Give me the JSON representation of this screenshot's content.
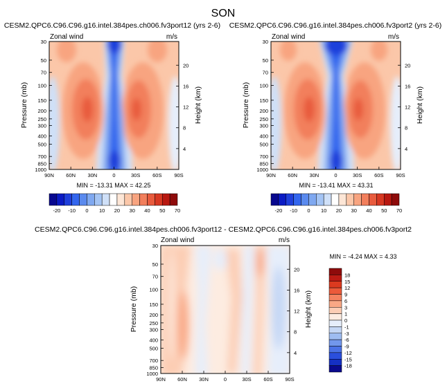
{
  "page_title": "SON",
  "chart_data": [
    {
      "type": "heatmap",
      "title": "CESM2.QPC6.C96.C96.g16.intel.384pes.ch006.fv3port12 (yrs 2-6)",
      "subtitle_left": "Zonal wind",
      "subtitle_right": "m/s",
      "ylabel": "Pressure (mb)",
      "ylabel_right": "Height (km)",
      "xticks": [
        "90N",
        "60N",
        "30N",
        "0",
        "30S",
        "60S",
        "90S"
      ],
      "yticks": [
        "30",
        "50",
        "70",
        "100",
        "150",
        "200",
        "250",
        "300",
        "400",
        "500",
        "700",
        "850",
        "1000"
      ],
      "yticks_right": [
        "20",
        "16",
        "12",
        "8",
        "4"
      ],
      "stats": "MIN = -13.31   MAX =  42.25",
      "min": -13.31,
      "max": 42.25,
      "colorbar": {
        "orientation": "horizontal",
        "labels": [
          "-20",
          "-10",
          "0",
          "10",
          "20",
          "30",
          "40",
          "50",
          "70"
        ]
      }
    },
    {
      "type": "heatmap",
      "title": "CESM2.QPC6.C96.C96.g16.intel.384pes.ch006.fv3port2 (yrs 2-6)",
      "subtitle_left": "Zonal wind",
      "subtitle_right": "m/s",
      "ylabel": "Pressure (mb)",
      "ylabel_right": "Height (km)",
      "xticks": [
        "90N",
        "60N",
        "30N",
        "0",
        "30S",
        "60S",
        "90S"
      ],
      "yticks": [
        "30",
        "50",
        "70",
        "100",
        "150",
        "200",
        "250",
        "300",
        "400",
        "500",
        "700",
        "850",
        "1000"
      ],
      "yticks_right": [
        "20",
        "16",
        "12",
        "8",
        "4"
      ],
      "stats": "MIN = -13.41   MAX =  43.31",
      "min": -13.41,
      "max": 43.31,
      "colorbar": {
        "orientation": "horizontal",
        "labels": [
          "-20",
          "-10",
          "0",
          "10",
          "20",
          "30",
          "40",
          "50",
          "70"
        ]
      }
    },
    {
      "type": "heatmap",
      "title": "CESM2.QPC6.C96.C96.g16.intel.384pes.ch006.fv3port12 - CESM2.QPC6.C96.C96.g16.intel.384pes.ch006.fv3port2",
      "subtitle_left": "Zonal wind",
      "subtitle_right": "m/s",
      "ylabel": "Pressure (mb)",
      "ylabel_right": "Height (km)",
      "xticks": [
        "90N",
        "60N",
        "30N",
        "0",
        "30S",
        "60S",
        "90S"
      ],
      "yticks": [
        "30",
        "50",
        "70",
        "100",
        "150",
        "200",
        "250",
        "300",
        "400",
        "500",
        "700",
        "850",
        "1000"
      ],
      "yticks_right": [
        "20",
        "16",
        "12",
        "8",
        "4"
      ],
      "stats": "MIN = -4.24   MAX =  4.33",
      "min": -4.24,
      "max": 4.33,
      "colorbar": {
        "orientation": "vertical",
        "labels": [
          "18",
          "15",
          "12",
          "9",
          "6",
          "3",
          "1",
          "0",
          "-1",
          "-3",
          "-6",
          "-9",
          "-12",
          "-15",
          "-18"
        ]
      }
    }
  ],
  "colors": {
    "cbar_top": [
      "#08088f",
      "#0b1bc4",
      "#1f3fdb",
      "#3366ee",
      "#5a8aee",
      "#7fa8f0",
      "#a4c4f4",
      "#cfe0f8",
      "#ffffff",
      "#fde6d6",
      "#fbc7a9",
      "#f8a480",
      "#f27f5c",
      "#e85b3d",
      "#d73822",
      "#b81810",
      "#8e0b0b"
    ],
    "cbar_diff": [
      "#8e0b0b",
      "#bb1b14",
      "#dc3a1f",
      "#ec5a3a",
      "#f58360",
      "#f9a885",
      "#fccdb4",
      "#fdece1",
      "#e6eefb",
      "#c5d7f5",
      "#9ebcf1",
      "#7297ec",
      "#4b72e6",
      "#2b4fdc",
      "#1530c3",
      "#0a0a8d"
    ]
  }
}
